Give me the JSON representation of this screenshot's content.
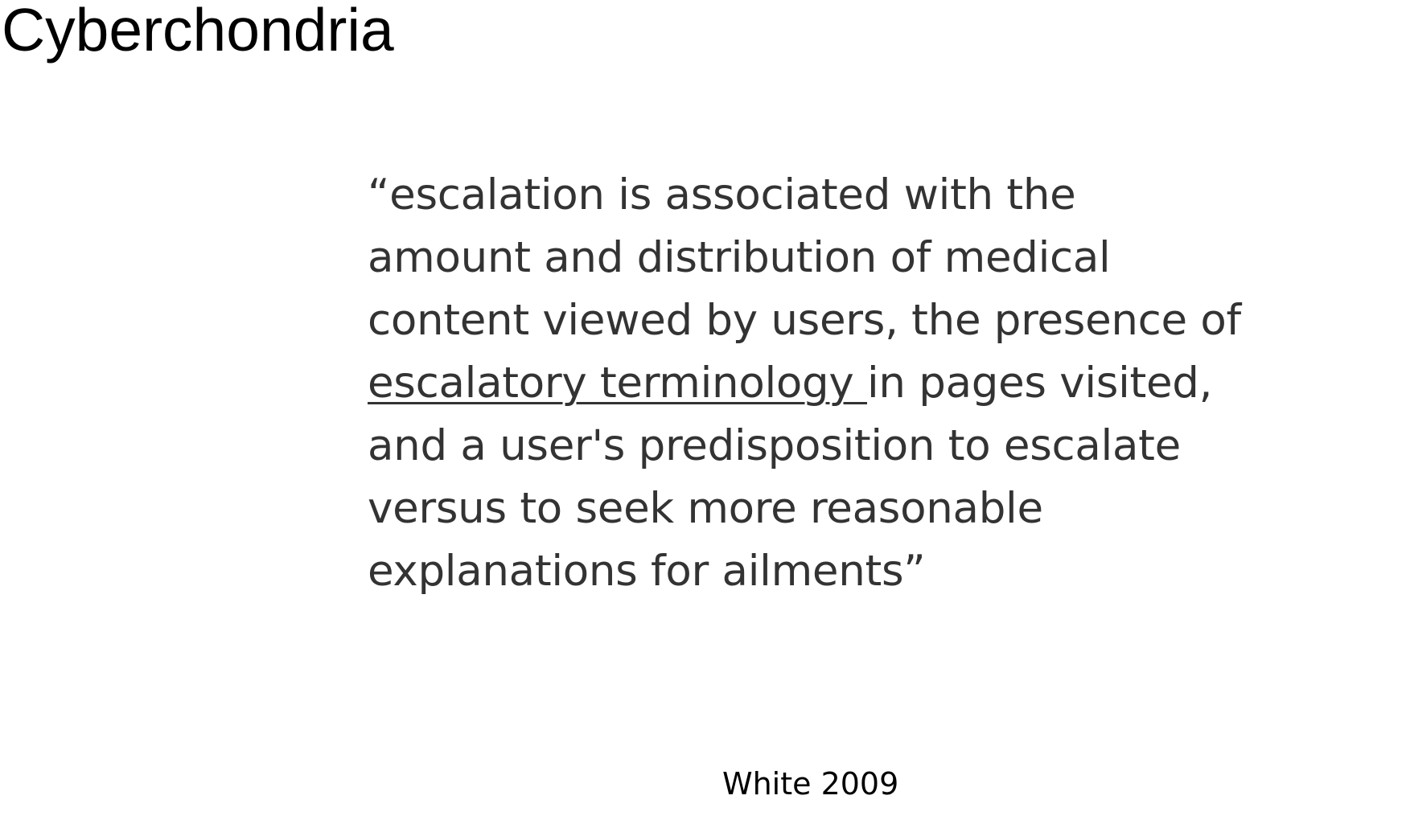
{
  "slide": {
    "title": "Cyberchondria",
    "quote": {
      "line1": "“escalation is associated with the",
      "line2": "amount and distribution of medical",
      "line3": "content viewed by users, the presence of",
      "line4_underlined": "escalatory terminology ",
      "line4_rest": "in pages visited,",
      "line5": "and a user's predisposition to escalate",
      "line6": "versus to seek more reasonable",
      "line7": "explanations for ailments”"
    },
    "citation": "White 2009"
  },
  "colors": {
    "title": "#000000",
    "quote_text": "#333333",
    "background": "#ffffff"
  }
}
